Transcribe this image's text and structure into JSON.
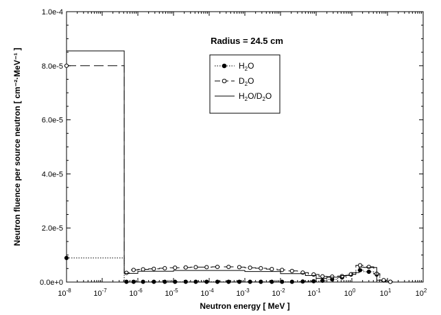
{
  "chart_data": {
    "type": "line",
    "x_scale": "log",
    "y_scale": "linear",
    "xlim": [
      1e-08,
      100
    ],
    "ylim": [
      0,
      0.0001
    ],
    "xlabel": "Neutron energy  [ MeV ]",
    "ylabel": "Neutron fluence per source neutron  [ cm⁻²·MeV⁻¹ ]",
    "annotation": "Radius = 24.5 cm",
    "y_ticks": [
      "0.0e+0",
      "2.0e-5",
      "4.0e-5",
      "6.0e-5",
      "8.0e-5",
      "1.0e-4"
    ],
    "x_ticks": [
      {
        "base": "10",
        "exp": "-8"
      },
      {
        "base": "10",
        "exp": "-7"
      },
      {
        "base": "10",
        "exp": "-6"
      },
      {
        "base": "10",
        "exp": "-5"
      },
      {
        "base": "10",
        "exp": "-4"
      },
      {
        "base": "10",
        "exp": "-3"
      },
      {
        "base": "10",
        "exp": "-2"
      },
      {
        "base": "10",
        "exp": "-1"
      },
      {
        "base": "10",
        "exp": "0"
      },
      {
        "base": "10",
        "exp": "1"
      },
      {
        "base": "10",
        "exp": "2"
      }
    ],
    "grid": false,
    "legend_position": "upper-center",
    "series": [
      {
        "name": "H2O",
        "legend_parts": [
          {
            "t": "H"
          },
          {
            "t": "2",
            "sub": true
          },
          {
            "t": "O"
          }
        ],
        "style": "dotted",
        "marker": "filled-circle",
        "color": "#000000",
        "step_edges": [
          1e-08,
          4.14e-07,
          6.25e-07,
          1e-06,
          2e-06,
          4e-06,
          8e-06,
          1.6e-05,
          3e-05,
          6e-05,
          0.00012,
          0.00024,
          0.0005,
          0.001,
          0.002,
          0.004,
          0.008,
          0.015,
          0.03,
          0.06,
          0.12,
          0.2,
          0.4,
          0.7,
          1.3,
          2.2,
          4.1,
          6.1,
          10,
          14
        ],
        "points": [
          [
            1e-08,
            8.9e-06
          ],
          [
            4.8e-07,
            1e-07
          ],
          [
            7.6e-07,
            1e-07
          ],
          [
            1.4e-06,
            1e-07
          ],
          [
            2.8e-06,
            1e-07
          ],
          [
            5.7e-06,
            1e-07
          ],
          [
            1.1e-05,
            1e-07
          ],
          [
            2.2e-05,
            1e-07
          ],
          [
            4.2e-05,
            1e-07
          ],
          [
            8.5e-05,
            1e-07
          ],
          [
            0.00017,
            1e-07
          ],
          [
            0.00035,
            1e-07
          ],
          [
            0.0007,
            1e-07
          ],
          [
            0.0014,
            1e-07
          ],
          [
            0.0028,
            1e-07
          ],
          [
            0.0057,
            1e-07
          ],
          [
            0.011,
            1e-07
          ],
          [
            0.021,
            1e-07
          ],
          [
            0.042,
            2e-07
          ],
          [
            0.085,
            3e-07
          ],
          [
            0.15,
            5e-07
          ],
          [
            0.28,
            1e-06
          ],
          [
            0.53,
            1.7e-06
          ],
          [
            0.95,
            2.8e-06
          ],
          [
            1.7,
            4.4e-06
          ],
          [
            3.0,
            3.8e-06
          ],
          [
            5.0,
            2.8e-06
          ],
          [
            7.8,
            6e-07
          ],
          [
            12,
            1e-07
          ]
        ]
      },
      {
        "name": "D2O",
        "legend_parts": [
          {
            "t": "D"
          },
          {
            "t": "2",
            "sub": true
          },
          {
            "t": "O"
          }
        ],
        "style": "dashed",
        "marker": "open-circle",
        "color": "#000000",
        "step_edges": [
          1e-08,
          4.14e-07,
          6.25e-07,
          1e-06,
          2e-06,
          4e-06,
          8e-06,
          1.6e-05,
          3e-05,
          6e-05,
          0.00012,
          0.00024,
          0.0005,
          0.001,
          0.002,
          0.004,
          0.008,
          0.015,
          0.03,
          0.06,
          0.12,
          0.2,
          0.4,
          0.7,
          1.3,
          2.2,
          4.1,
          6.1,
          10,
          14
        ],
        "points": [
          [
            1e-08,
            8e-05
          ],
          [
            4.8e-07,
            3.4e-06
          ],
          [
            7.6e-07,
            4.5e-06
          ],
          [
            1.4e-06,
            4.7e-06
          ],
          [
            2.8e-06,
            4.9e-06
          ],
          [
            5.7e-06,
            5.1e-06
          ],
          [
            1.1e-05,
            5.3e-06
          ],
          [
            2.2e-05,
            5.4e-06
          ],
          [
            4.2e-05,
            5.5e-06
          ],
          [
            8.5e-05,
            5.5e-06
          ],
          [
            0.00017,
            5.6e-06
          ],
          [
            0.00035,
            5.6e-06
          ],
          [
            0.0007,
            5.5e-06
          ],
          [
            0.0014,
            5.3e-06
          ],
          [
            0.0028,
            5.1e-06
          ],
          [
            0.0057,
            4.8e-06
          ],
          [
            0.011,
            4.5e-06
          ],
          [
            0.021,
            4.1e-06
          ],
          [
            0.042,
            3.5e-06
          ],
          [
            0.085,
            2.8e-06
          ],
          [
            0.15,
            2.1e-06
          ],
          [
            0.28,
            2e-06
          ],
          [
            0.53,
            2.2e-06
          ],
          [
            0.95,
            2.9e-06
          ],
          [
            1.7,
            6.2e-06
          ],
          [
            3.0,
            5.6e-06
          ],
          [
            5.0,
            3.1e-06
          ],
          [
            7.8,
            7e-07
          ],
          [
            12,
            1e-07
          ]
        ]
      },
      {
        "name": "H2O/D2O",
        "legend_parts": [
          {
            "t": "H"
          },
          {
            "t": "2",
            "sub": true
          },
          {
            "t": "O/D"
          },
          {
            "t": "2",
            "sub": true
          },
          {
            "t": "O"
          }
        ],
        "style": "solid",
        "marker": "none",
        "color": "#000000",
        "step_edges": [
          1e-08,
          4.14e-07,
          1e-06,
          1e-05,
          0.0001,
          0.001,
          0.01,
          0.05,
          0.1,
          0.2,
          0.5,
          1.0,
          1.6,
          2.2,
          5.0,
          7.0,
          10
        ],
        "values": [
          8.55e-05,
          3.2e-06,
          4e-06,
          4.3e-06,
          4.3e-06,
          3.9e-06,
          3.1e-06,
          2.4e-06,
          1.4e-06,
          1.8e-06,
          2.4e-06,
          3.5e-06,
          5.5e-06,
          5.4e-06,
          7e-07,
          1e-07
        ]
      }
    ]
  }
}
